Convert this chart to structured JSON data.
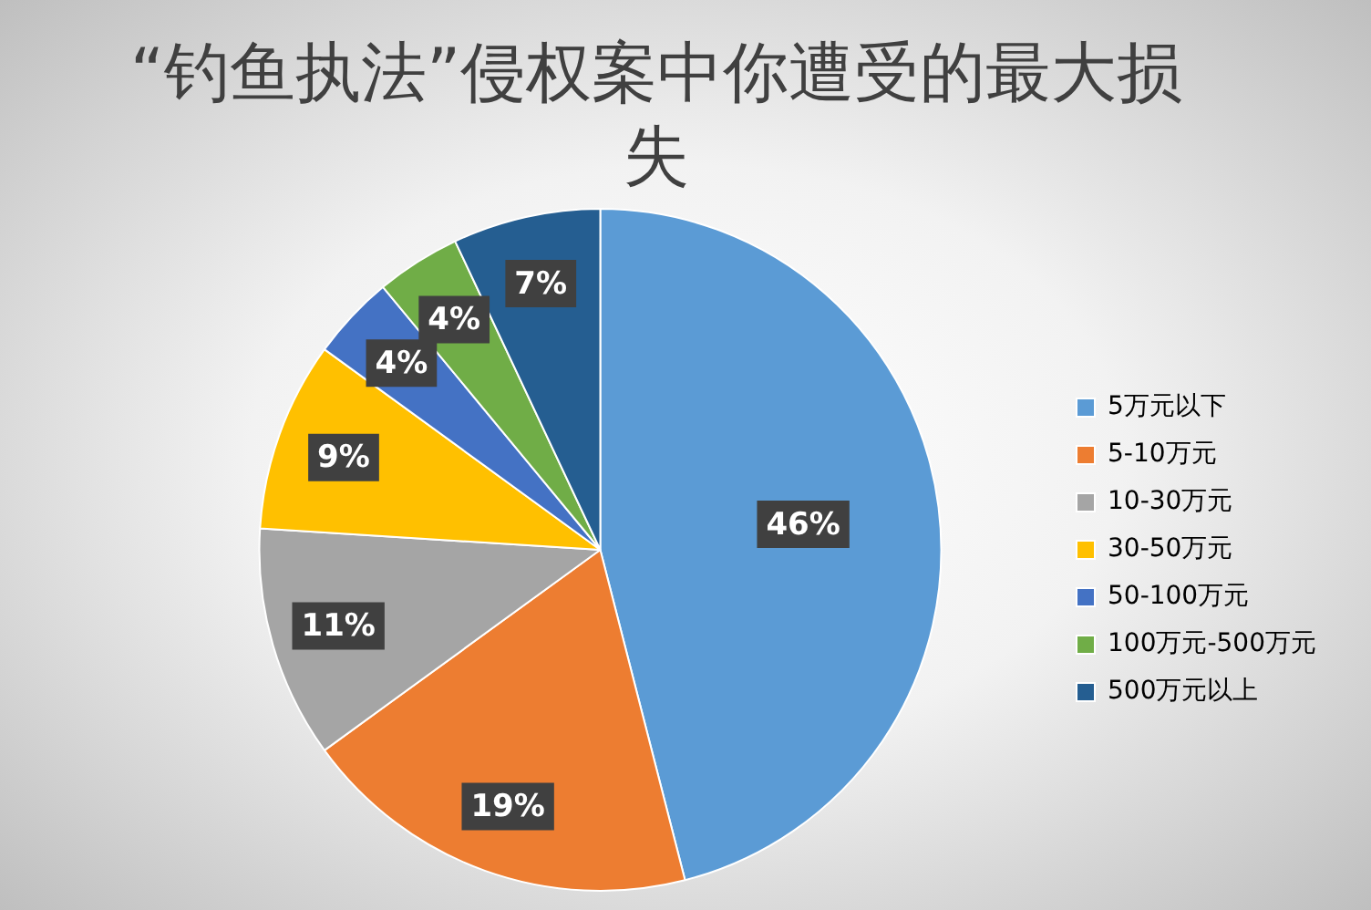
{
  "chart_data": {
    "type": "pie",
    "title": "“钓鱼执法”侵权案中你遭受的最大损失",
    "categories": [
      "5万元以下",
      "5-10万元",
      "10-30万元",
      "30-50万元",
      "50-100万元",
      "100万元-500万元",
      "500万元以上"
    ],
    "values": [
      46,
      19,
      11,
      9,
      4,
      4,
      7
    ],
    "value_labels": [
      "46%",
      "19%",
      "11%",
      "9%",
      "4%",
      "4%",
      "7%"
    ],
    "colors": [
      "#5b9bd5",
      "#ed7d31",
      "#a5a5a5",
      "#ffc000",
      "#4472c4",
      "#70ad47",
      "#255e91"
    ],
    "legend": "right"
  }
}
